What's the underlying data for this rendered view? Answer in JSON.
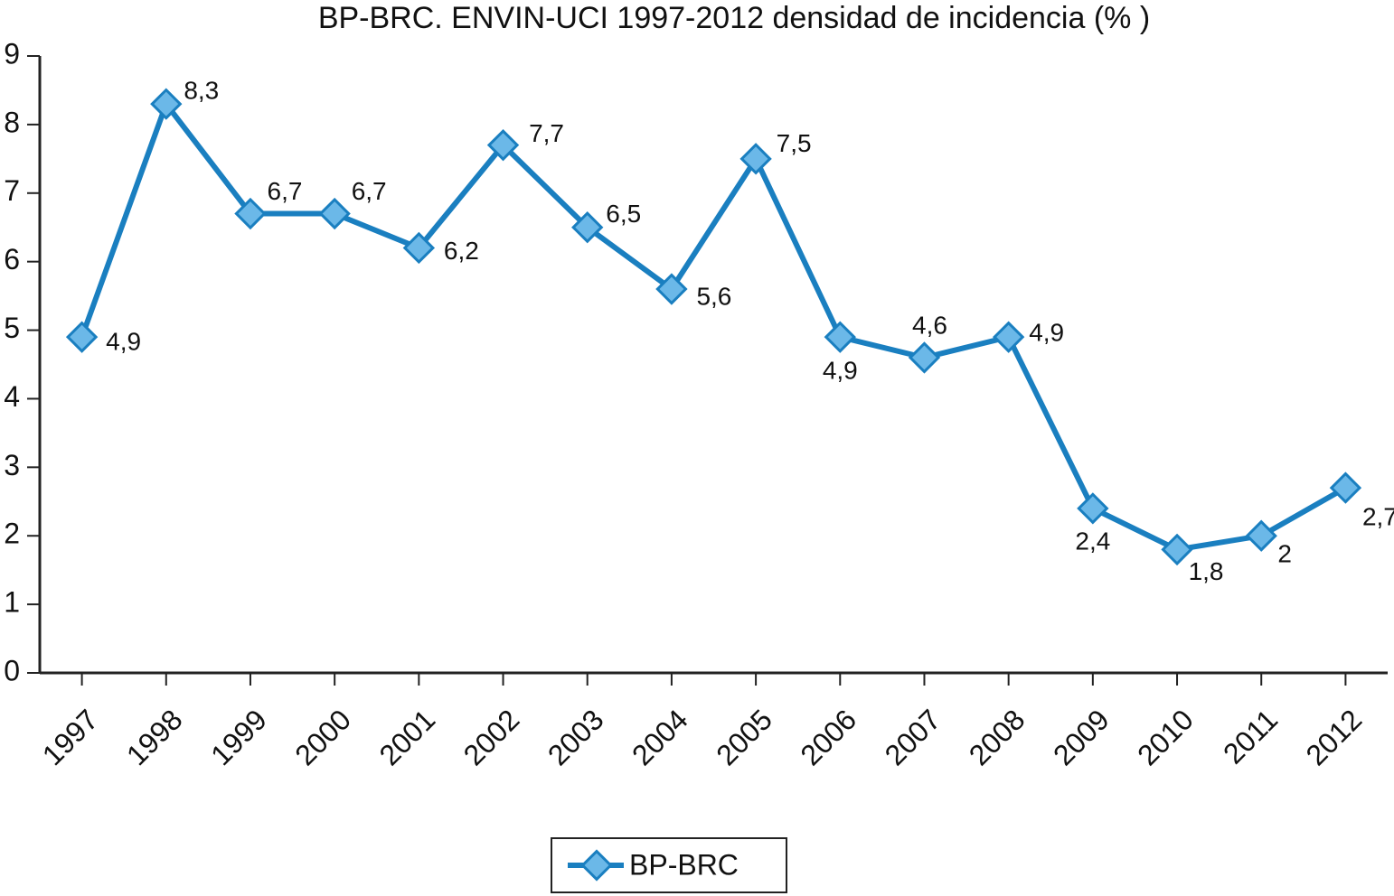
{
  "chart_data": {
    "type": "line",
    "title": "BP-BRC. ENVIN-UCI 1997-2012 densidad de incidencia (%  )",
    "categories": [
      "1997",
      "1998",
      "1999",
      "2000",
      "2001",
      "2002",
      "2003",
      "2004",
      "2005",
      "2006",
      "2007",
      "2008",
      "2009",
      "2010",
      "2011",
      "2012"
    ],
    "series": [
      {
        "name": "BP-BRC",
        "color": "#1a7fc0",
        "marker_fill": "#6bb8e8",
        "values": [
          4.9,
          8.3,
          6.7,
          6.7,
          6.2,
          7.7,
          6.5,
          5.6,
          7.5,
          4.9,
          4.6,
          4.9,
          2.4,
          1.8,
          2,
          2.7
        ],
        "value_labels": [
          "4,9",
          "8,3",
          "6,7",
          "6,7",
          "6,2",
          "7,7",
          "6,5",
          "5,6",
          "7,5",
          "4,9",
          "4,6",
          "4,9",
          "2,4",
          "1,8",
          "2",
          "2,7"
        ]
      }
    ],
    "ylim": [
      0,
      9
    ],
    "yticks": [
      0,
      1,
      2,
      3,
      4,
      5,
      6,
      7,
      8,
      9
    ],
    "grid": false,
    "legend": "bottom"
  }
}
